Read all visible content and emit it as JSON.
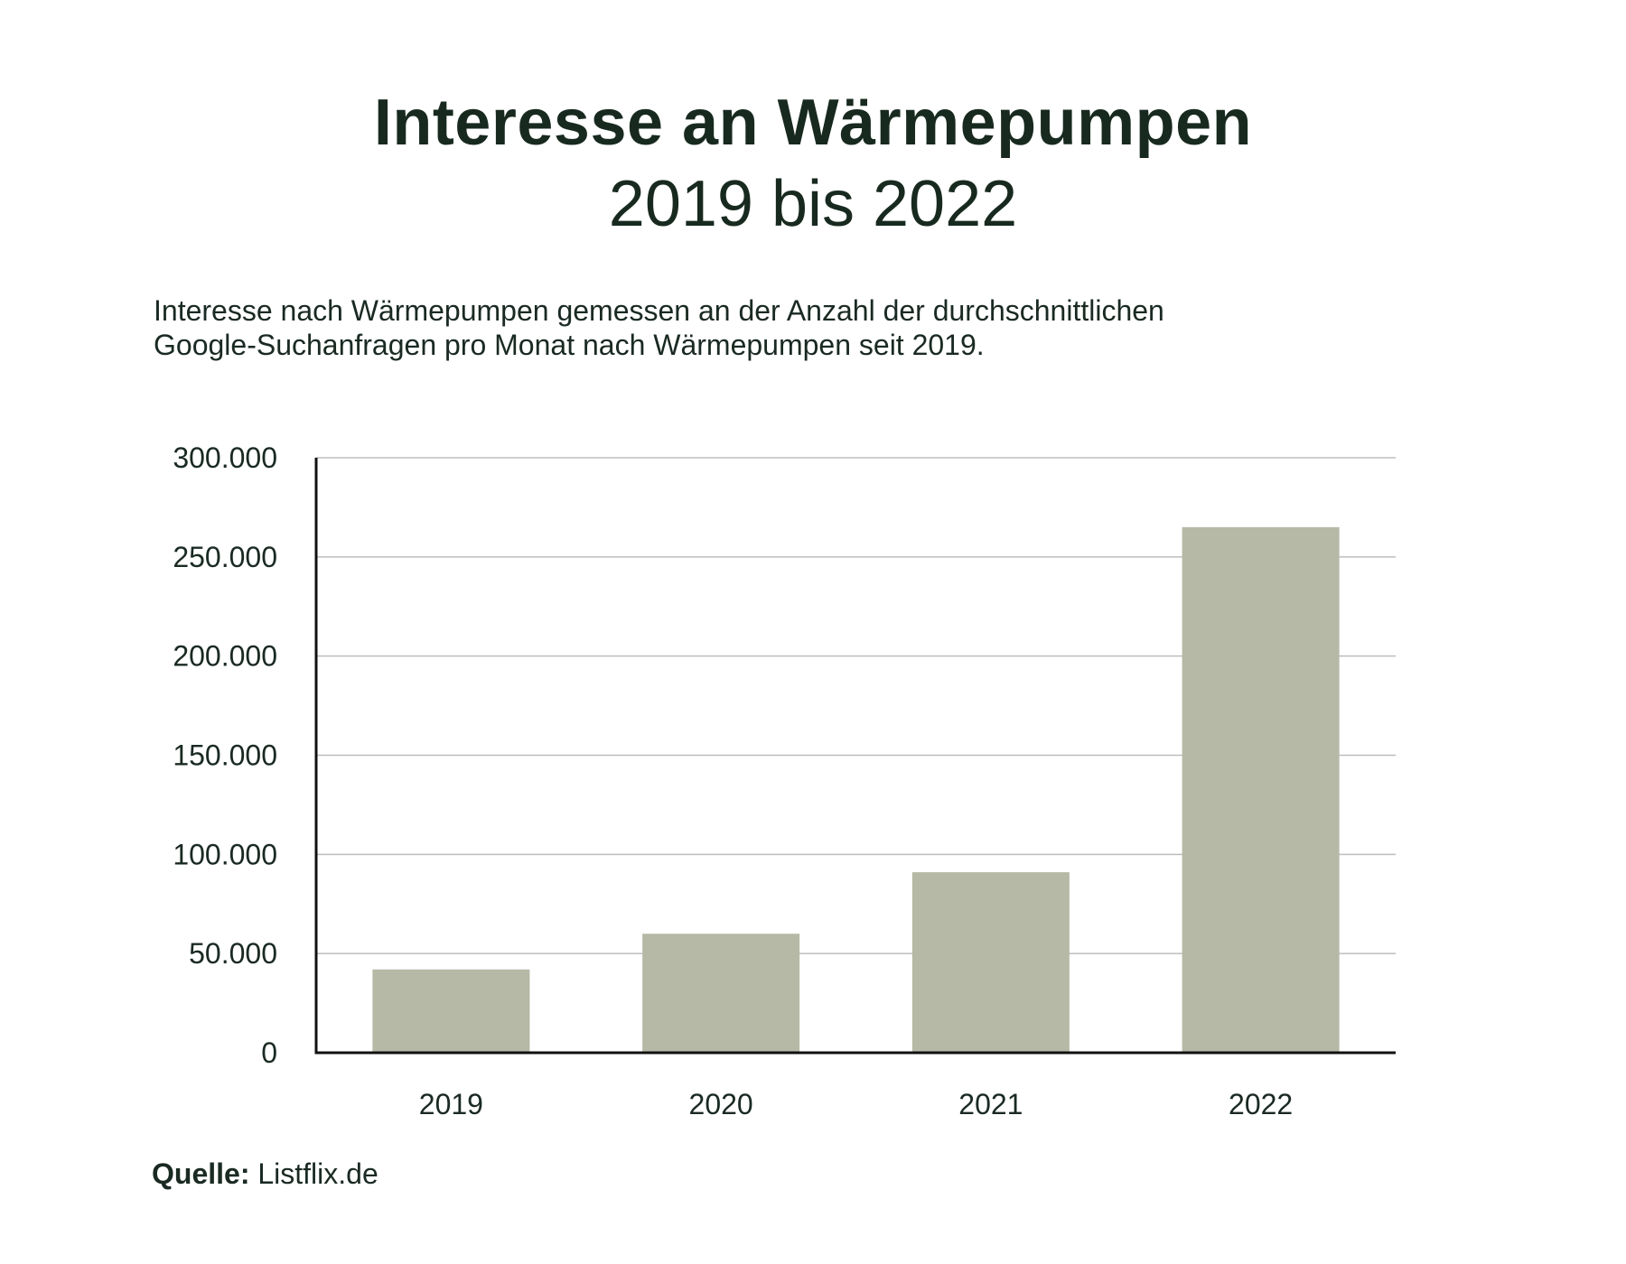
{
  "header": {
    "title": "Interesse an Wärmepumpen",
    "subtitle": "2019 bis 2022",
    "description_line1": "Interesse nach Wärmepumpen gemessen an der Anzahl der durchschnittlichen",
    "description_line2": "Google-Suchanfragen pro Monat nach Wärmepumpen seit 2019."
  },
  "footer": {
    "source_label": "Quelle:",
    "source_value": "Listflix.de"
  },
  "colors": {
    "bar": "#b5b9a5",
    "text": "#1a2a22",
    "grid": "#bdbdbd",
    "axis": "#111111"
  },
  "chart_data": {
    "type": "bar",
    "categories": [
      "2019",
      "2020",
      "2021",
      "2022"
    ],
    "values": [
      42000,
      60000,
      91000,
      265000
    ],
    "ylim": [
      0,
      300000
    ],
    "yticks": [
      0,
      50000,
      100000,
      150000,
      200000,
      250000,
      300000
    ],
    "ytick_labels": [
      "0",
      "50.000",
      "100.000",
      "150.000",
      "200.000",
      "250.000",
      "300.000"
    ],
    "grid": true
  }
}
